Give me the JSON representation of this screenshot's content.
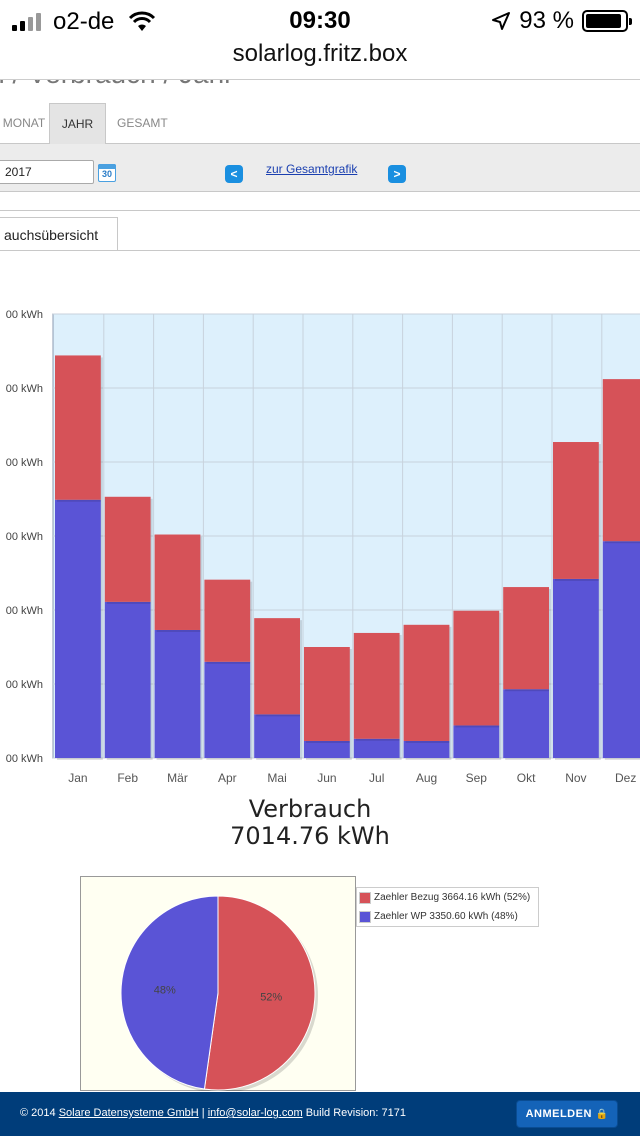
{
  "statusbar": {
    "carrier": "o2-de",
    "time": "09:30",
    "battery": "93 %",
    "battery_level": 0.93
  },
  "browser": {
    "url": "solarlog.fritz.box"
  },
  "page": {
    "title": "Daten / Verbrauch / Jahr"
  },
  "tabs": {
    "monat": "MONAT",
    "jahr": "JAHR",
    "gesamt": "GESAMT"
  },
  "toolbar": {
    "date_value": "2017",
    "calendar_label": "30",
    "prev_icon": "<",
    "next_icon": ">",
    "overview_link": "zur Gesamtgrafik"
  },
  "subtab": {
    "label": "auchsübersicht"
  },
  "chart_data": {
    "type": "bar",
    "stacked": true,
    "categories": [
      "Jan",
      "Feb",
      "Mär",
      "Apr",
      "Mai",
      "Jun",
      "Jul",
      "Aug",
      "Sep",
      "Okt",
      "Nov",
      "Dez"
    ],
    "y_tick_labels": [
      "00 kWh",
      "00 kWh",
      "00 kWh",
      "00 kWh",
      "00 kWh",
      "00 kWh",
      "00 kWh"
    ],
    "series": [
      {
        "name": "Zaehler WP",
        "color": "#5a54d6",
        "values": [
          3.49,
          2.11,
          1.73,
          1.3,
          0.59,
          0.23,
          0.26,
          0.23,
          0.44,
          0.93,
          2.42,
          2.93
        ]
      },
      {
        "name": "Zaehler Bezug",
        "color": "#d65258",
        "values": [
          1.95,
          1.42,
          1.29,
          1.11,
          1.3,
          1.27,
          1.43,
          1.57,
          1.55,
          1.38,
          1.85,
          2.19
        ]
      }
    ],
    "ylim": [
      0,
      6
    ],
    "grid": true
  },
  "summary": {
    "title": "Verbrauch",
    "value": "7014.76 kWh"
  },
  "pie": {
    "slices": [
      {
        "name": "Zaehler Bezug",
        "value": 3664.16,
        "percent": 52,
        "label": "52%",
        "color": "#d65258"
      },
      {
        "name": "Zaehler WP",
        "value": 3350.6,
        "percent": 48,
        "label": "48%",
        "color": "#5a54d6"
      }
    ],
    "legend": [
      "Zaehler Bezug 3664.16 kWh (52%)",
      "Zaehler WP 3350.60 kWh (48%)"
    ]
  },
  "footer": {
    "copyright": "© 2014",
    "company": "Solare Datensysteme GmbH",
    "separator": "|",
    "email": "info@solar-log.com",
    "build": "Build Revision: 7171",
    "login_label": "ANMELDEN",
    "lock_icon": "🔒"
  }
}
